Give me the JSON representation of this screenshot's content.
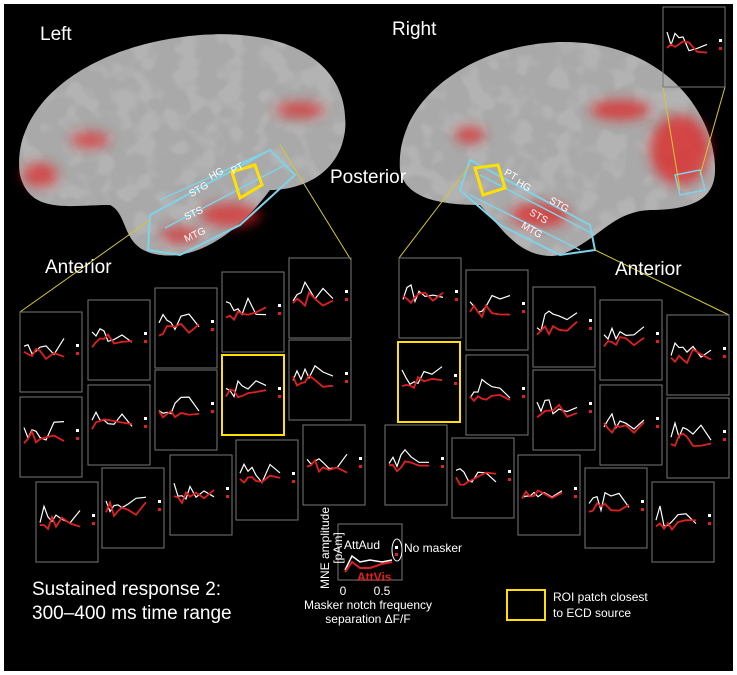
{
  "hemispheres": {
    "left": "Left",
    "right": "Right"
  },
  "directions": {
    "posterior": "Posterior",
    "anterior_left": "Anterior",
    "anterior_right": "Anterior"
  },
  "regions_left": [
    "STG",
    "HG",
    "PT",
    "STS",
    "MTG"
  ],
  "regions_right": [
    "PT",
    "HG",
    "STG",
    "STS",
    "MTG"
  ],
  "caption": [
    "Sustained response 2:",
    "300–400 ms time range"
  ],
  "legend": {
    "y_label": "MNE amplitude",
    "y_unit": "[pAm]",
    "att_aud": "AttAud",
    "att_vis": "AttVis",
    "no_masker": "No masker",
    "x_ticks": [
      "0",
      "0.5"
    ],
    "x_label": [
      "Masker notch frequency",
      "separation ΔF/F"
    ]
  },
  "roi_note": [
    "ROI patch closest",
    "to ECD source"
  ]
}
